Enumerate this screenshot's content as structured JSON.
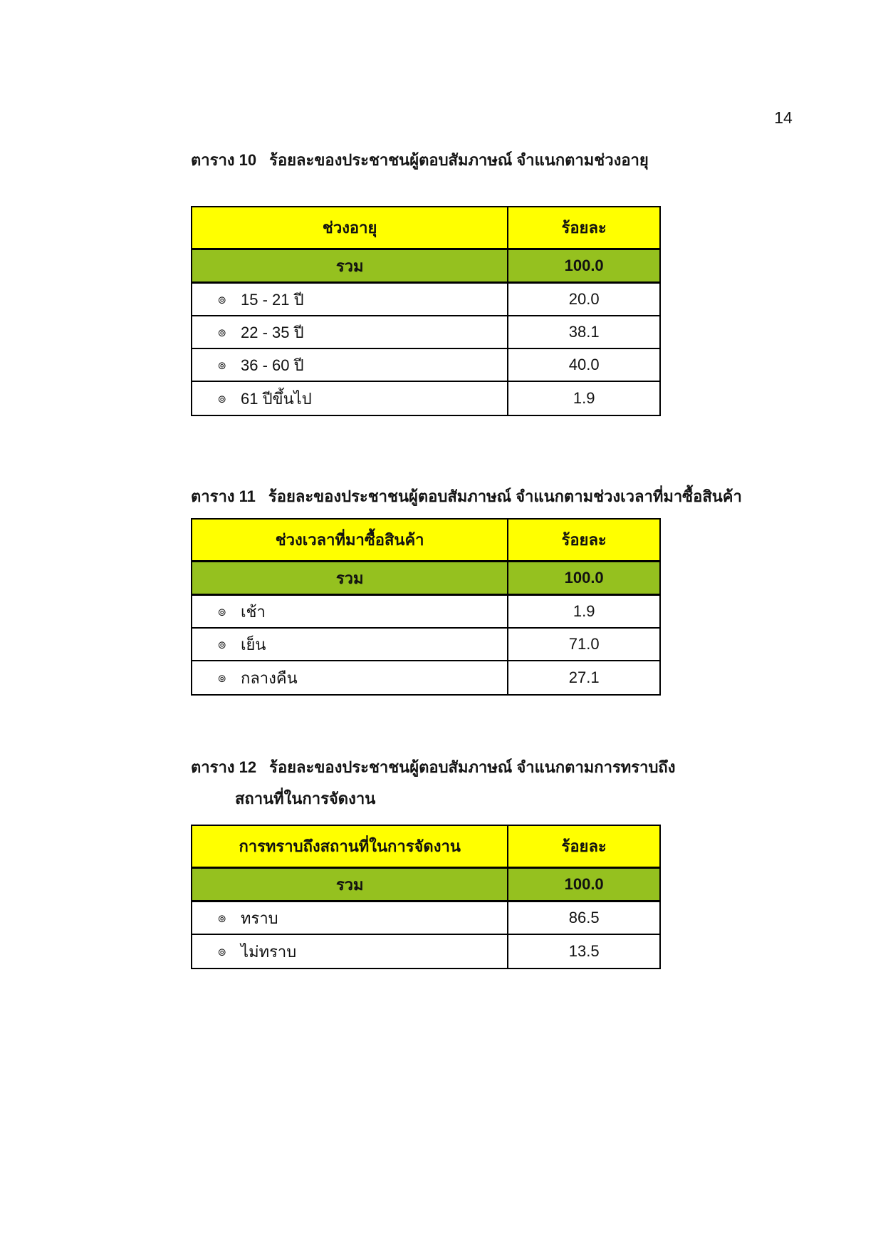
{
  "page": {
    "number": "14"
  },
  "colors": {
    "header_bg": "#FFFF00",
    "total_bg": "#95C11F",
    "border": "#000000",
    "page_bg": "#FFFFFF"
  },
  "tables": [
    {
      "title_label": "ตาราง 10",
      "title_text": "ร้อยละของประชาชนผู้ตอบสัมภาษณ์ จำแนกตามช่วงอายุ",
      "title_line2": "",
      "col1_header": "ช่วงอายุ",
      "col2_header": "ร้อยละ",
      "total_label": "รวม",
      "total_value": "100.0",
      "rows": [
        {
          "bullet": "๏",
          "label": "15 - 21 ปี",
          "value": "20.0"
        },
        {
          "bullet": "๏",
          "label": "22 - 35 ปี",
          "value": "38.1"
        },
        {
          "bullet": "๏",
          "label": "36 - 60 ปี",
          "value": "40.0"
        },
        {
          "bullet": "๏",
          "label": "61 ปีขึ้นไป",
          "value": "1.9"
        }
      ]
    },
    {
      "title_label": "ตาราง  11",
      "title_text": "ร้อยละของประชาชนผู้ตอบสัมภาษณ์ จำแนกตามช่วงเวลาที่มาซื้อสินค้า",
      "title_line2": "",
      "col1_header": "ช่วงเวลาที่มาซื้อสินค้า",
      "col2_header": "ร้อยละ",
      "total_label": "รวม",
      "total_value": "100.0",
      "rows": [
        {
          "bullet": "๏",
          "label": "เช้า",
          "value": "1.9"
        },
        {
          "bullet": "๏",
          "label": "เย็น",
          "value": "71.0"
        },
        {
          "bullet": "๏",
          "label": "กลางคืน",
          "value": "27.1"
        }
      ]
    },
    {
      "title_label": "ตาราง  12",
      "title_text": "ร้อยละของประชาชนผู้ตอบสัมภาษณ์ จำแนกตามการทราบถึง",
      "title_line2": "สถานที่ในการจัดงาน",
      "col1_header": "การทราบถึงสถานที่ในการจัดงาน",
      "col2_header": "ร้อยละ",
      "total_label": "รวม",
      "total_value": "100.0",
      "rows": [
        {
          "bullet": "๏",
          "label": "ทราบ",
          "value": "86.5"
        },
        {
          "bullet": "๏",
          "label": "ไม่ทราบ",
          "value": "13.5"
        }
      ]
    }
  ]
}
